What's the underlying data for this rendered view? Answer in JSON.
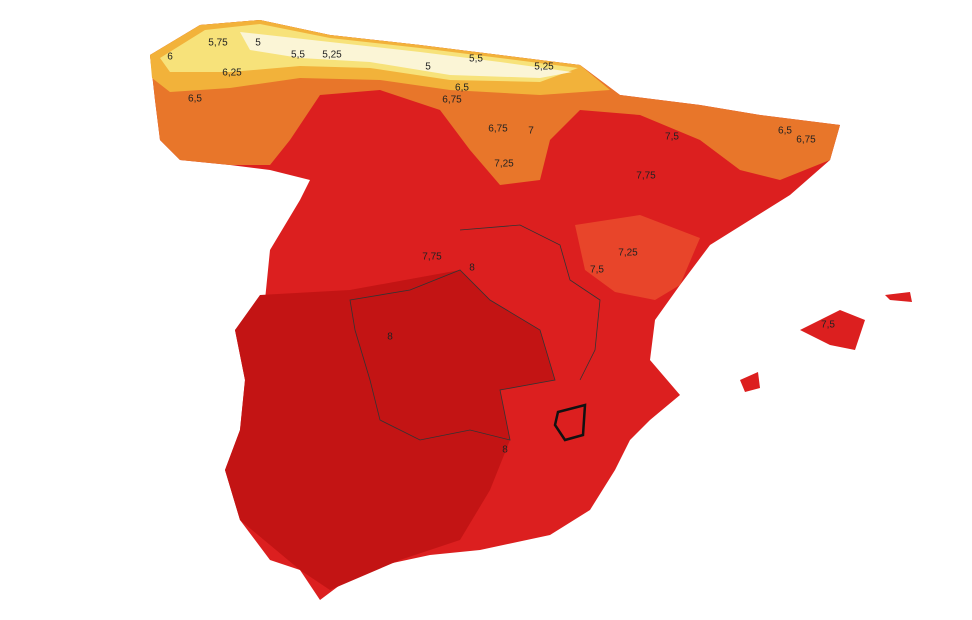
{
  "contour_labels": [
    "6",
    "5,75",
    "5",
    "5,5",
    "5,25",
    "5",
    "5,5",
    "5,25",
    "6,25",
    "6,5",
    "6,5",
    "6,75",
    "6,75",
    "7",
    "7,5",
    "6,5",
    "6,75",
    "7,25",
    "7,75",
    "7,75",
    "7,25",
    "7,5",
    "8",
    "8",
    "8",
    "7,5"
  ]
}
